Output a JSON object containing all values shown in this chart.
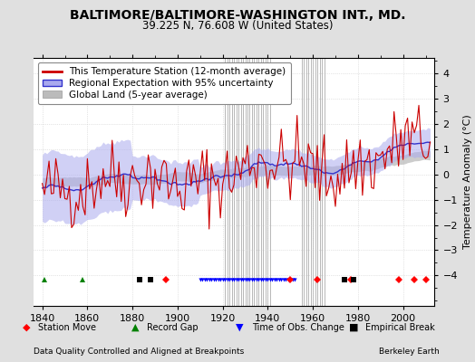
{
  "title": "BALTIMORE/BALTIMORE-WASHINGTON INT., MD.",
  "subtitle": "39.225 N, 76.608 W (United States)",
  "xlabel_left": "Data Quality Controlled and Aligned at Breakpoints",
  "xlabel_right": "Berkeley Earth",
  "ylabel": "Temperature Anomaly (°C)",
  "xlim": [
    1836,
    2014
  ],
  "ylim": [
    -5.2,
    4.6
  ],
  "yticks": [
    -4,
    -3,
    -2,
    -1,
    0,
    1,
    2,
    3,
    4
  ],
  "xticks": [
    1840,
    1860,
    1880,
    1900,
    1920,
    1940,
    1960,
    1980,
    2000
  ],
  "background_color": "#e0e0e0",
  "plot_bg_color": "#ffffff",
  "grid_color": "#cccccc",
  "title_fontsize": 10,
  "subtitle_fontsize": 8.5,
  "axis_fontsize": 8,
  "legend_fontsize": 7.5,
  "seed": 42,
  "station_moves": [
    1895,
    1950,
    1962,
    1977,
    1998,
    2005,
    2010
  ],
  "record_gaps": [
    1841,
    1858,
    1883
  ],
  "time_obs_change_start": 1910,
  "time_obs_change_end": 1952,
  "empirical_breaks": [
    1883,
    1888,
    1974,
    1978
  ],
  "vertical_lines": [
    1921,
    1922,
    1923,
    1924,
    1925,
    1926,
    1927,
    1928,
    1929,
    1930,
    1931,
    1932,
    1933,
    1934,
    1935,
    1936,
    1937,
    1938,
    1939,
    1940,
    1941,
    1955,
    1956,
    1957,
    1958,
    1959,
    1960,
    1961,
    1962,
    1963,
    1964,
    1965
  ],
  "red_color": "#cc0000",
  "blue_color": "#0000cc",
  "band_blue_color": "#aaaaee",
  "band_gray_color": "#bbbbbb",
  "line_blue_color": "#3333cc",
  "line_gray_color": "#999999"
}
